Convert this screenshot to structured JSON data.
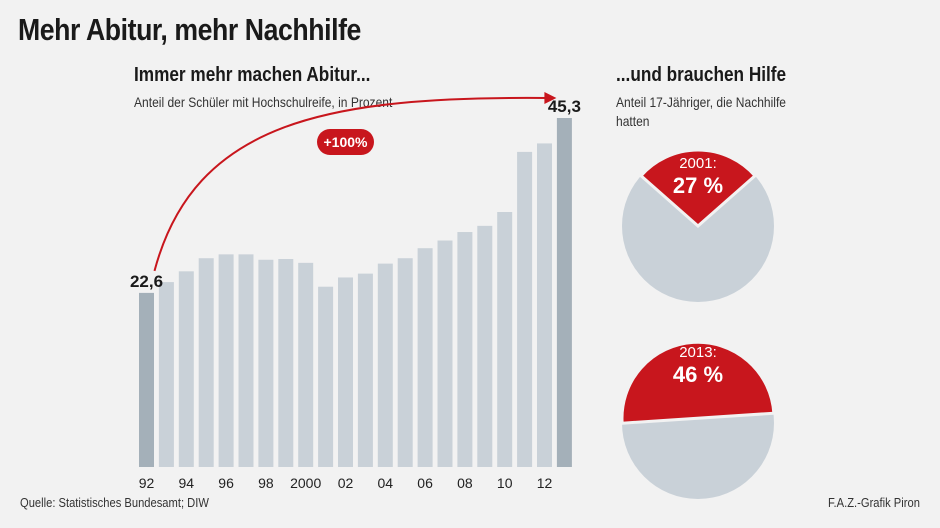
{
  "title": "Mehr Abitur, mehr Nachhilfe",
  "colors": {
    "bar": "#c9d1d8",
    "bar_highlight": "#a4b0b9",
    "accent": "#c8161d",
    "pie_rest": "#c9d1d8",
    "background": "#f2f2f2"
  },
  "left_panel": {
    "heading": "Immer mehr machen Abitur...",
    "note": "Anteil der Schüler mit Hochschulreife, in Prozent",
    "badge": "+100%"
  },
  "right_panel": {
    "heading": "...und brauchen Hilfe",
    "note": "Anteil 17-Jähriger, die Nachhilfe hatten"
  },
  "footer": {
    "source": "Quelle: Statistisches Bundesamt; DIW",
    "credit": "F.A.Z.-Grafik Piron"
  },
  "chart_data": [
    {
      "type": "bar",
      "title": "Immer mehr machen Abitur...",
      "subtitle": "Anteil der Schüler mit Hochschulreife, in Prozent",
      "categories": [
        "1992",
        "1993",
        "1994",
        "1995",
        "1996",
        "1997",
        "1998",
        "1999",
        "2000",
        "2001",
        "2002",
        "2003",
        "2004",
        "2005",
        "2006",
        "2007",
        "2008",
        "2009",
        "2010",
        "2011",
        "2012",
        "2013"
      ],
      "tick_labels": [
        "92",
        "",
        "94",
        "",
        "96",
        "",
        "98",
        "",
        "2000",
        "",
        "02",
        "",
        "04",
        "",
        "06",
        "",
        "08",
        "",
        "10",
        "",
        "12",
        ""
      ],
      "values": [
        22.6,
        24.0,
        25.4,
        27.1,
        27.6,
        27.6,
        26.9,
        27.0,
        26.5,
        23.4,
        24.6,
        25.1,
        26.4,
        27.1,
        28.4,
        29.4,
        30.5,
        31.3,
        33.1,
        40.9,
        42.0,
        45.3
      ],
      "data_labels": [
        {
          "index": 0,
          "text": "22,6"
        },
        {
          "index": 21,
          "text": "45,3"
        }
      ],
      "highlight_indices": [
        0,
        21
      ],
      "annotation": "+100%",
      "ylim": [
        0,
        45.3
      ],
      "grid": false
    },
    {
      "type": "pie",
      "title": "...und brauchen Hilfe",
      "subtitle": "Anteil 17-Jähriger, die Nachhilfe hatten",
      "pies": [
        {
          "year": "2001:",
          "value": 27,
          "label": "27 %"
        },
        {
          "year": "2013:",
          "value": 46,
          "label": "46 %"
        }
      ]
    }
  ]
}
